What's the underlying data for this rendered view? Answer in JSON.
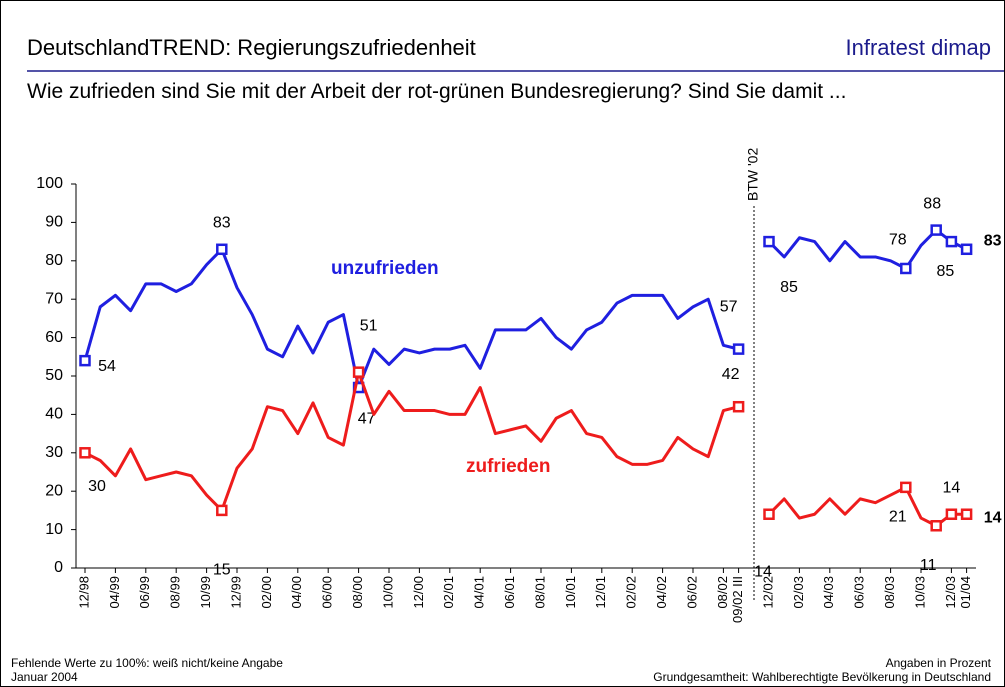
{
  "header": {
    "title": "DeutschlandTREND: Regierungszufriedenheit",
    "brand": "Infratest dimap"
  },
  "question": "Wie zufrieden sind Sie mit der Arbeit der rot-grünen Bundesregierung? Sind Sie damit ...",
  "chart_data": {
    "type": "line",
    "annotation": "BTW '02",
    "categories": [
      "12/98",
      null,
      "04/99",
      null,
      "06/99",
      null,
      "08/99",
      null,
      "10/99",
      null,
      "12/99",
      null,
      "02/00",
      null,
      "04/00",
      null,
      "06/00",
      null,
      "08/00",
      null,
      "10/00",
      null,
      "12/00",
      null,
      "02/01",
      null,
      "04/01",
      null,
      "06/01",
      null,
      "08/01",
      null,
      "10/01",
      null,
      "12/01",
      null,
      "02/02",
      null,
      "04/02",
      null,
      "06/02",
      null,
      "08/02",
      "09/02 III",
      null,
      "12/02",
      null,
      "02/03",
      null,
      "04/03",
      null,
      "06/03",
      null,
      "08/03",
      null,
      "10/03",
      null,
      "12/03",
      "01/04"
    ],
    "series": [
      {
        "name": "unzufrieden",
        "color": "#1f1fe0",
        "values": [
          54,
          68,
          71,
          67,
          74,
          74,
          72,
          74,
          79,
          83,
          73,
          66,
          57,
          55,
          63,
          56,
          64,
          66,
          47,
          57,
          53,
          57,
          56,
          57,
          57,
          58,
          52,
          62,
          62,
          62,
          65,
          60,
          57,
          62,
          64,
          69,
          71,
          71,
          71,
          65,
          68,
          70,
          58,
          57,
          null,
          85,
          81,
          86,
          85,
          80,
          85,
          81,
          81,
          80,
          78,
          84,
          88,
          85,
          83
        ]
      },
      {
        "name": "zufrieden",
        "color": "#ee1c1c",
        "values": [
          30,
          28,
          24,
          31,
          23,
          24,
          25,
          24,
          19,
          15,
          26,
          31,
          42,
          41,
          35,
          43,
          34,
          32,
          51,
          40,
          46,
          41,
          41,
          41,
          40,
          40,
          47,
          35,
          36,
          37,
          33,
          39,
          41,
          35,
          34,
          29,
          27,
          27,
          28,
          34,
          31,
          29,
          41,
          42,
          null,
          14,
          18,
          13,
          14,
          18,
          14,
          18,
          17,
          19,
          21,
          13,
          11,
          14,
          14
        ]
      }
    ],
    "ylim": [
      0,
      100
    ],
    "yticks": [
      0,
      10,
      20,
      30,
      40,
      50,
      60,
      70,
      80,
      90,
      100
    ]
  },
  "footer": {
    "left": [
      "Fehlende Werte zu 100%: weiß nicht/keine Angabe",
      "Januar 2004"
    ],
    "right": [
      "Angaben in Prozent",
      "Grundgesamtheit: Wahlberechtigte Bevölkerung in Deutschland"
    ]
  }
}
